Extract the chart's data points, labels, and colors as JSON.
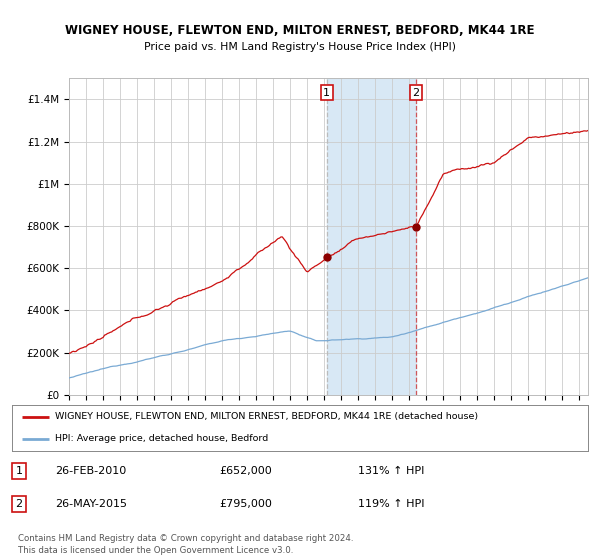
{
  "title": "WIGNEY HOUSE, FLEWTON END, MILTON ERNEST, BEDFORD, MK44 1RE",
  "subtitle": "Price paid vs. HM Land Registry's House Price Index (HPI)",
  "hpi_color": "#7aaad4",
  "price_color": "#cc1111",
  "background_color": "#ffffff",
  "grid_color": "#cccccc",
  "highlight_fill": "#d8e8f5",
  "ylim": [
    0,
    1500000
  ],
  "yticks": [
    0,
    200000,
    400000,
    600000,
    800000,
    1000000,
    1200000,
    1400000
  ],
  "ytick_labels": [
    "£0",
    "£200K",
    "£400K",
    "£600K",
    "£800K",
    "£1M",
    "£1.2M",
    "£1.4M"
  ],
  "xmin": 1995,
  "xmax": 2025.5,
  "sale1_date": 2010.15,
  "sale1_price": 652000,
  "sale1_label": "1",
  "sale2_date": 2015.4,
  "sale2_price": 795000,
  "sale2_label": "2",
  "legend_line1": "WIGNEY HOUSE, FLEWTON END, MILTON ERNEST, BEDFORD, MK44 1RE (detached house)",
  "legend_line2": "HPI: Average price, detached house, Bedford",
  "table_row1": [
    "1",
    "26-FEB-2010",
    "£652,000",
    "131% ↑ HPI"
  ],
  "table_row2": [
    "2",
    "26-MAY-2015",
    "£795,000",
    "119% ↑ HPI"
  ],
  "footer": "Contains HM Land Registry data © Crown copyright and database right 2024.\nThis data is licensed under the Open Government Licence v3.0."
}
